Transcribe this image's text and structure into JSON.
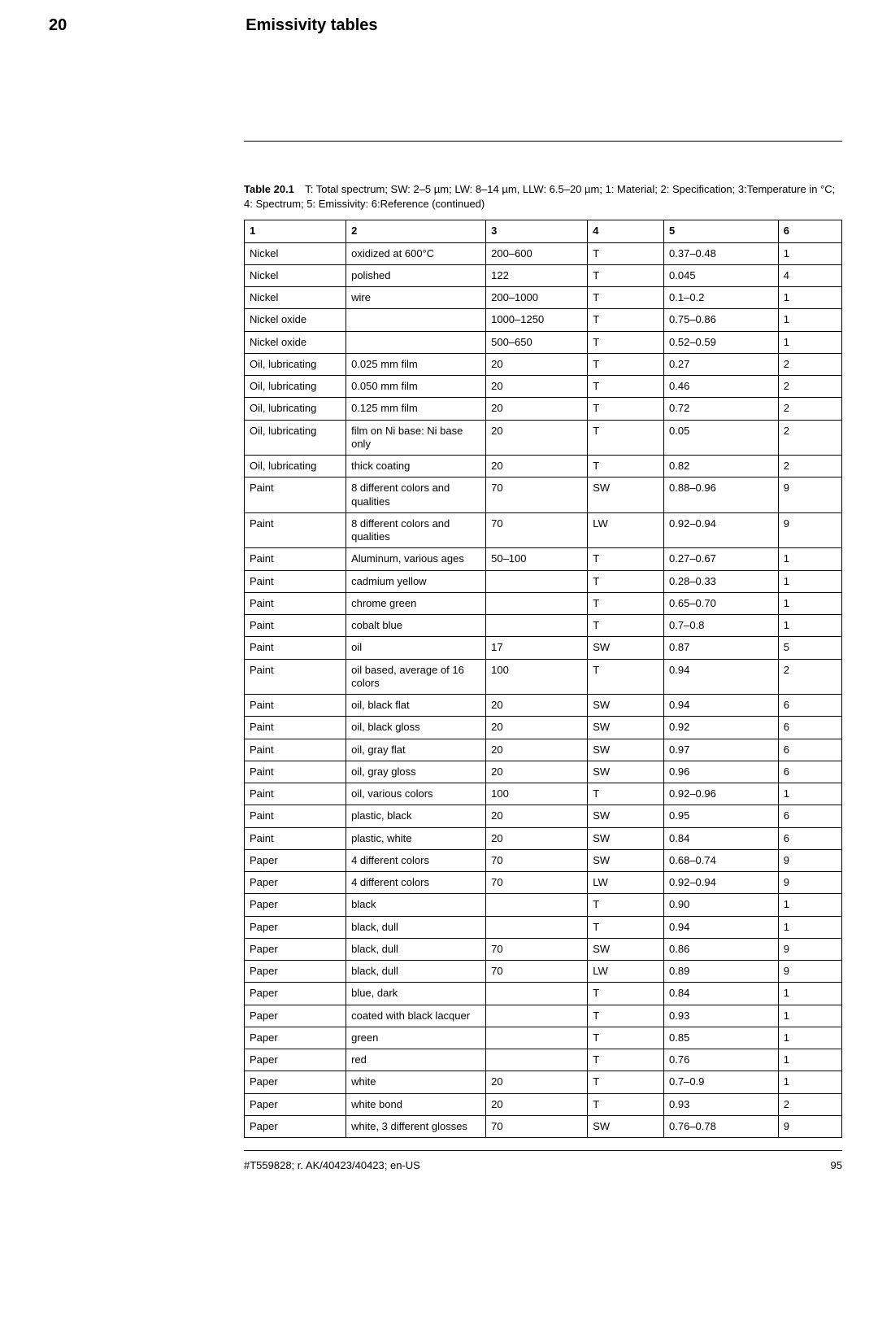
{
  "header": {
    "chapter_number": "20",
    "chapter_title": "Emissivity tables"
  },
  "table": {
    "caption_label": "Table 20.1",
    "caption_text": "T: Total spectrum; SW: 2–5 µm; LW: 8–14 µm, LLW: 6.5–20 µm; 1: Material; 2: Specification; 3:Temperature in °C; 4: Spectrum; 5: Emissivity: 6:Reference (continued)",
    "columns": [
      "1",
      "2",
      "3",
      "4",
      "5",
      "6"
    ],
    "rows": [
      [
        "Nickel",
        "oxidized at 600°C",
        "200–600",
        "T",
        "0.37–0.48",
        "1"
      ],
      [
        "Nickel",
        "polished",
        "122",
        "T",
        "0.045",
        "4"
      ],
      [
        "Nickel",
        "wire",
        "200–1000",
        "T",
        "0.1–0.2",
        "1"
      ],
      [
        "Nickel oxide",
        "",
        "1000–1250",
        "T",
        "0.75–0.86",
        "1"
      ],
      [
        "Nickel oxide",
        "",
        "500–650",
        "T",
        "0.52–0.59",
        "1"
      ],
      [
        "Oil, lubricating",
        "0.025 mm film",
        "20",
        "T",
        "0.27",
        "2"
      ],
      [
        "Oil, lubricating",
        "0.050 mm film",
        "20",
        "T",
        "0.46",
        "2"
      ],
      [
        "Oil, lubricating",
        "0.125 mm film",
        "20",
        "T",
        "0.72",
        "2"
      ],
      [
        "Oil, lubricating",
        "film on Ni base: Ni base only",
        "20",
        "T",
        "0.05",
        "2"
      ],
      [
        "Oil, lubricating",
        "thick coating",
        "20",
        "T",
        "0.82",
        "2"
      ],
      [
        "Paint",
        "8 different colors and qualities",
        "70",
        "SW",
        "0.88–0.96",
        "9"
      ],
      [
        "Paint",
        "8 different colors and qualities",
        "70",
        "LW",
        "0.92–0.94",
        "9"
      ],
      [
        "Paint",
        "Aluminum, various ages",
        "50–100",
        "T",
        "0.27–0.67",
        "1"
      ],
      [
        "Paint",
        "cadmium yellow",
        "",
        "T",
        "0.28–0.33",
        "1"
      ],
      [
        "Paint",
        "chrome green",
        "",
        "T",
        "0.65–0.70",
        "1"
      ],
      [
        "Paint",
        "cobalt blue",
        "",
        "T",
        "0.7–0.8",
        "1"
      ],
      [
        "Paint",
        "oil",
        "17",
        "SW",
        "0.87",
        "5"
      ],
      [
        "Paint",
        "oil based, average of 16 colors",
        "100",
        "T",
        "0.94",
        "2"
      ],
      [
        "Paint",
        "oil, black flat",
        "20",
        "SW",
        "0.94",
        "6"
      ],
      [
        "Paint",
        "oil, black gloss",
        "20",
        "SW",
        "0.92",
        "6"
      ],
      [
        "Paint",
        "oil, gray flat",
        "20",
        "SW",
        "0.97",
        "6"
      ],
      [
        "Paint",
        "oil, gray gloss",
        "20",
        "SW",
        "0.96",
        "6"
      ],
      [
        "Paint",
        "oil, various colors",
        "100",
        "T",
        "0.92–0.96",
        "1"
      ],
      [
        "Paint",
        "plastic, black",
        "20",
        "SW",
        "0.95",
        "6"
      ],
      [
        "Paint",
        "plastic, white",
        "20",
        "SW",
        "0.84",
        "6"
      ],
      [
        "Paper",
        "4 different colors",
        "70",
        "SW",
        "0.68–0.74",
        "9"
      ],
      [
        "Paper",
        "4 different colors",
        "70",
        "LW",
        "0.92–0.94",
        "9"
      ],
      [
        "Paper",
        "black",
        "",
        "T",
        "0.90",
        "1"
      ],
      [
        "Paper",
        "black, dull",
        "",
        "T",
        "0.94",
        "1"
      ],
      [
        "Paper",
        "black, dull",
        "70",
        "SW",
        "0.86",
        "9"
      ],
      [
        "Paper",
        "black, dull",
        "70",
        "LW",
        "0.89",
        "9"
      ],
      [
        "Paper",
        "blue, dark",
        "",
        "T",
        "0.84",
        "1"
      ],
      [
        "Paper",
        "coated with black lacquer",
        "",
        "T",
        "0.93",
        "1"
      ],
      [
        "Paper",
        "green",
        "",
        "T",
        "0.85",
        "1"
      ],
      [
        "Paper",
        "red",
        "",
        "T",
        "0.76",
        "1"
      ],
      [
        "Paper",
        "white",
        "20",
        "T",
        "0.7–0.9",
        "1"
      ],
      [
        "Paper",
        "white bond",
        "20",
        "T",
        "0.93",
        "2"
      ],
      [
        "Paper",
        "white, 3 different glosses",
        "70",
        "SW",
        "0.76–0.78",
        "9"
      ]
    ]
  },
  "footer": {
    "doc_id": "#T559828; r. AK/40423/40423; en-US",
    "page_number": "95"
  }
}
